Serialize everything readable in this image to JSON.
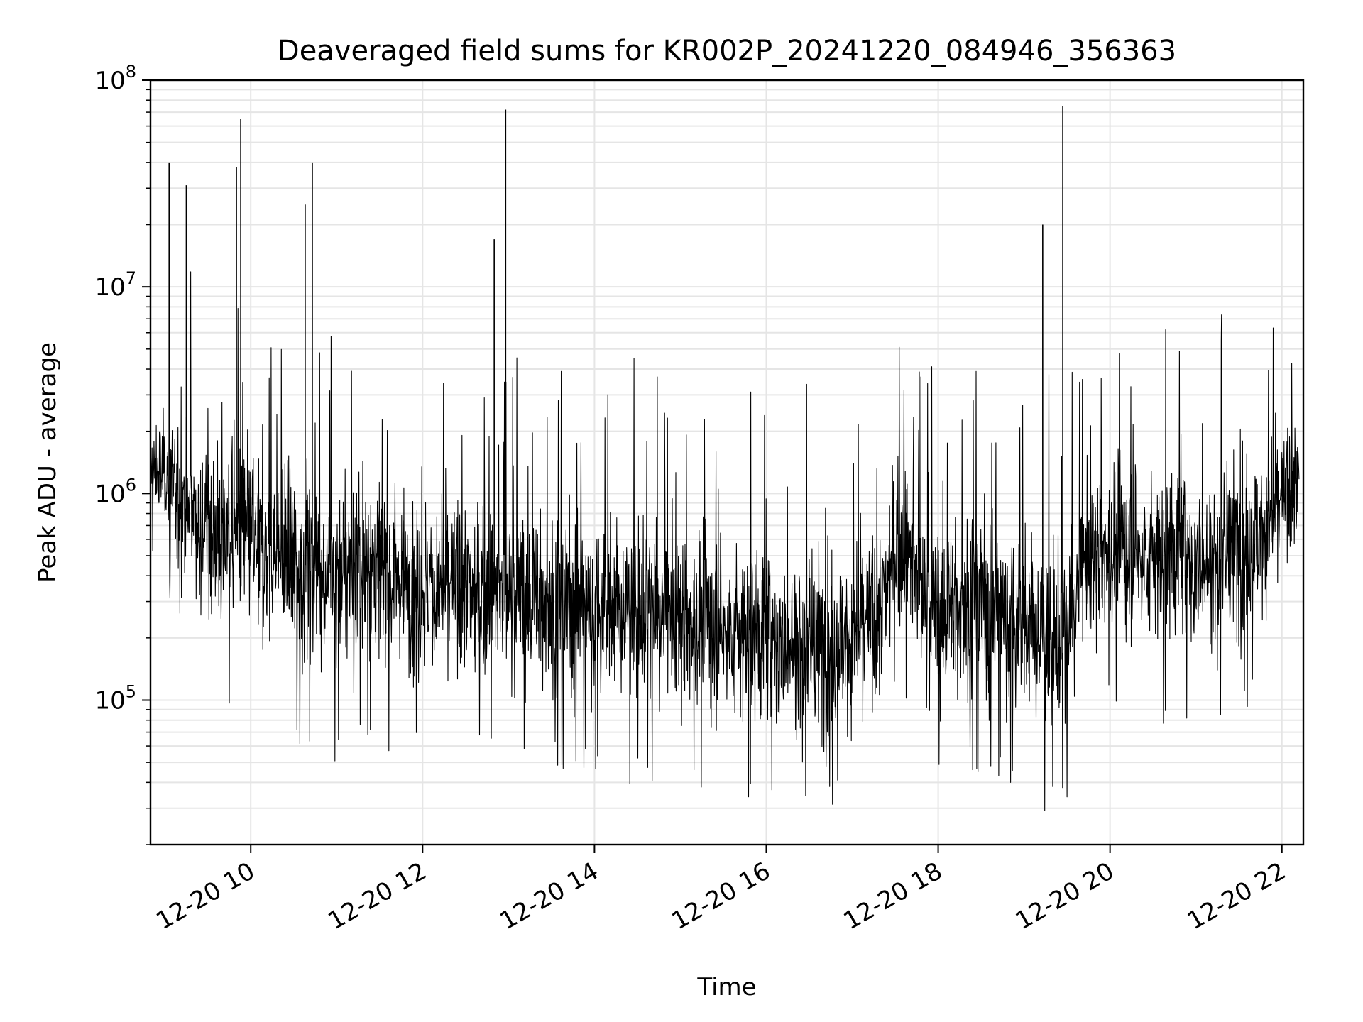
{
  "chart_data": {
    "type": "line",
    "title": "Deaveraged field sums for KR002P_20241220_084946_356363",
    "xlabel": "Time",
    "ylabel": "Peak ADU - average",
    "x_scale": "time",
    "y_scale": "log",
    "xlim": [
      "2024-12-20 08:50",
      "2024-12-20 22:15"
    ],
    "ylim": [
      20000,
      100000000
    ],
    "grid": true,
    "line_color": "#000000",
    "grid_color": "#e5e5e5",
    "x_ticks": [
      {
        "value": "2024-12-20 10:00",
        "label": "12-20 10"
      },
      {
        "value": "2024-12-20 12:00",
        "label": "12-20 12"
      },
      {
        "value": "2024-12-20 14:00",
        "label": "12-20 14"
      },
      {
        "value": "2024-12-20 16:00",
        "label": "12-20 16"
      },
      {
        "value": "2024-12-20 18:00",
        "label": "12-20 18"
      },
      {
        "value": "2024-12-20 20:00",
        "label": "12-20 20"
      },
      {
        "value": "2024-12-20 22:00",
        "label": "12-20 22"
      }
    ],
    "y_ticks": [
      {
        "value": 100000,
        "base": "10",
        "exp": "5"
      },
      {
        "value": 1000000,
        "base": "10",
        "exp": "6"
      },
      {
        "value": 10000000,
        "base": "10",
        "exp": "7"
      },
      {
        "value": 100000000,
        "base": "10",
        "exp": "8"
      }
    ],
    "series": [
      {
        "x": [
          "2024-12-20 08:50",
          "2024-12-20 09:00",
          "2024-12-20 09:10",
          "2024-12-20 09:20",
          "2024-12-20 09:30",
          "2024-12-20 09:40",
          "2024-12-20 09:50",
          "2024-12-20 10:00",
          "2024-12-20 10:10",
          "2024-12-20 10:20",
          "2024-12-20 10:30",
          "2024-12-20 10:40",
          "2024-12-20 10:50",
          "2024-12-20 11:00",
          "2024-12-20 11:10",
          "2024-12-20 11:20",
          "2024-12-20 11:30",
          "2024-12-20 11:40",
          "2024-12-20 11:50",
          "2024-12-20 12:00",
          "2024-12-20 12:10",
          "2024-12-20 12:20",
          "2024-12-20 12:30",
          "2024-12-20 12:40",
          "2024-12-20 12:50",
          "2024-12-20 13:00",
          "2024-12-20 13:10",
          "2024-12-20 13:20",
          "2024-12-20 13:30",
          "2024-12-20 13:40",
          "2024-12-20 13:50",
          "2024-12-20 14:00",
          "2024-12-20 14:10",
          "2024-12-20 14:20",
          "2024-12-20 14:30",
          "2024-12-20 14:40",
          "2024-12-20 14:50",
          "2024-12-20 15:00",
          "2024-12-20 15:10",
          "2024-12-20 15:20",
          "2024-12-20 15:30",
          "2024-12-20 15:40",
          "2024-12-20 15:50",
          "2024-12-20 16:00",
          "2024-12-20 16:10",
          "2024-12-20 16:20",
          "2024-12-20 16:30",
          "2024-12-20 16:40",
          "2024-12-20 16:50",
          "2024-12-20 17:00",
          "2024-12-20 17:10",
          "2024-12-20 17:20",
          "2024-12-20 17:30",
          "2024-12-20 17:40",
          "2024-12-20 17:50",
          "2024-12-20 18:00",
          "2024-12-20 18:10",
          "2024-12-20 18:20",
          "2024-12-20 18:30",
          "2024-12-20 18:40",
          "2024-12-20 18:50",
          "2024-12-20 19:00",
          "2024-12-20 19:10",
          "2024-12-20 19:20",
          "2024-12-20 19:30",
          "2024-12-20 19:40",
          "2024-12-20 19:50",
          "2024-12-20 20:00",
          "2024-12-20 20:10",
          "2024-12-20 20:20",
          "2024-12-20 20:30",
          "2024-12-20 20:40",
          "2024-12-20 20:50",
          "2024-12-20 21:00",
          "2024-12-20 21:10",
          "2024-12-20 21:20",
          "2024-12-20 21:30",
          "2024-12-20 21:40",
          "2024-12-20 21:50",
          "2024-12-20 22:00",
          "2024-12-20 22:10"
        ],
        "y_median": [
          1200000,
          1300000,
          900000,
          800000,
          700000,
          600000,
          700000,
          600000,
          500000,
          500000,
          450000,
          450000,
          400000,
          400000,
          450000,
          450000,
          420000,
          400000,
          380000,
          350000,
          350000,
          340000,
          340000,
          330000,
          330000,
          320000,
          320000,
          320000,
          300000,
          300000,
          290000,
          280000,
          270000,
          270000,
          260000,
          260000,
          250000,
          250000,
          240000,
          230000,
          220000,
          210000,
          200000,
          190000,
          190000,
          180000,
          180000,
          180000,
          190000,
          200000,
          220000,
          250000,
          600000,
          500000,
          300000,
          260000,
          280000,
          300000,
          300000,
          280000,
          250000,
          230000,
          210000,
          200000,
          200000,
          400000,
          500000,
          550000,
          550000,
          500000,
          500000,
          480000,
          480000,
          450000,
          450000,
          500000,
          550000,
          600000,
          700000,
          900000,
          1100000
        ],
        "y_low": [
          600000,
          500000,
          300000,
          200000,
          150000,
          120000,
          120000,
          110000,
          100000,
          90000,
          90000,
          80000,
          75000,
          70000,
          75000,
          80000,
          80000,
          78000,
          75000,
          70000,
          70000,
          70000,
          70000,
          68000,
          68000,
          68000,
          66000,
          65000,
          64000,
          62000,
          60000,
          58000,
          57000,
          56000,
          55000,
          54000,
          53000,
          52000,
          50000,
          48000,
          47000,
          46000,
          45000,
          44000,
          43000,
          42000,
          41000,
          41000,
          42000,
          44000,
          47000,
          52000,
          130000,
          100000,
          60000,
          55000,
          58000,
          60000,
          60000,
          56000,
          50000,
          45000,
          42000,
          40000,
          45000,
          110000,
          120000,
          130000,
          125000,
          115000,
          110000,
          100000,
          98000,
          95000,
          95000,
          105000,
          115000,
          130000,
          160000,
          280000,
          350000
        ],
        "y_high": [
          3000000,
          3000000,
          2800000,
          2600000,
          2500000,
          2400000,
          2200000,
          2000000,
          1800000,
          1700000,
          1600000,
          1600000,
          1500000,
          1500000,
          1500000,
          1500000,
          1400000,
          1400000,
          1300000,
          1300000,
          1250000,
          1250000,
          1200000,
          1200000,
          1150000,
          1150000,
          1100000,
          1100000,
          1050000,
          1050000,
          1000000,
          980000,
          960000,
          950000,
          940000,
          930000,
          920000,
          900000,
          880000,
          860000,
          840000,
          820000,
          800000,
          780000,
          770000,
          760000,
          750000,
          750000,
          760000,
          780000,
          800000,
          850000,
          2200000,
          1800000,
          1100000,
          950000,
          1000000,
          1050000,
          1050000,
          1000000,
          900000,
          850000,
          800000,
          780000,
          800000,
          1400000,
          1600000,
          1800000,
          1800000,
          1700000,
          1650000,
          1600000,
          1600000,
          1550000,
          1550000,
          1650000,
          1800000,
          2000000,
          2200000,
          2500000,
          2800000
        ]
      }
    ],
    "spikes": [
      {
        "x": "2024-12-20 09:03",
        "y": 40000000
      },
      {
        "x": "2024-12-20 09:15",
        "y": 31000000
      },
      {
        "x": "2024-12-20 09:50",
        "y": 38000000
      },
      {
        "x": "2024-12-20 09:53",
        "y": 65000000
      },
      {
        "x": "2024-12-20 10:38",
        "y": 25000000
      },
      {
        "x": "2024-12-20 10:43",
        "y": 40000000
      },
      {
        "x": "2024-12-20 12:50",
        "y": 17000000
      },
      {
        "x": "2024-12-20 12:58",
        "y": 72000000
      },
      {
        "x": "2024-12-20 19:13",
        "y": 20000000
      },
      {
        "x": "2024-12-20 19:27",
        "y": 75000000
      }
    ]
  }
}
